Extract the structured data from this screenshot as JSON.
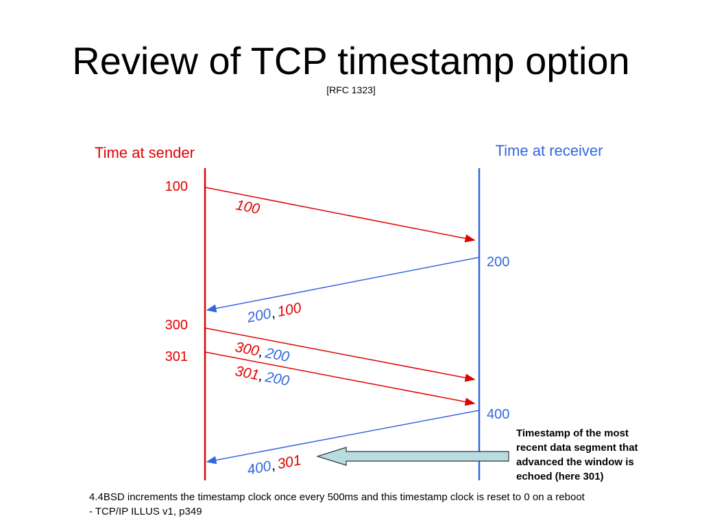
{
  "title": "Review of TCP timestamp option",
  "subtitle": "[RFC 1323]",
  "sender": {
    "label": "Time at sender",
    "times": [
      "100",
      "300",
      "301"
    ]
  },
  "receiver": {
    "label": "Time at receiver",
    "times": [
      "200",
      "400"
    ]
  },
  "messages": [
    {
      "ts": "100"
    },
    {
      "ts": "200",
      "separator": ",",
      "echo": "100"
    },
    {
      "ts": "300",
      "separator": ",",
      "echo": "200"
    },
    {
      "ts": "301",
      "separator": ",",
      "echo": "200"
    },
    {
      "ts": "400",
      "separator": ",",
      "echo": "301"
    }
  ],
  "callout": "Timestamp of the most recent data segment that advanced the window is echoed (here 301)",
  "footnote": [
    "4.4BSD increments the timestamp clock once every 500ms and this timestamp clock is reset to 0 on a reboot",
    "- TCP/IP ILLUS v1, p349"
  ]
}
